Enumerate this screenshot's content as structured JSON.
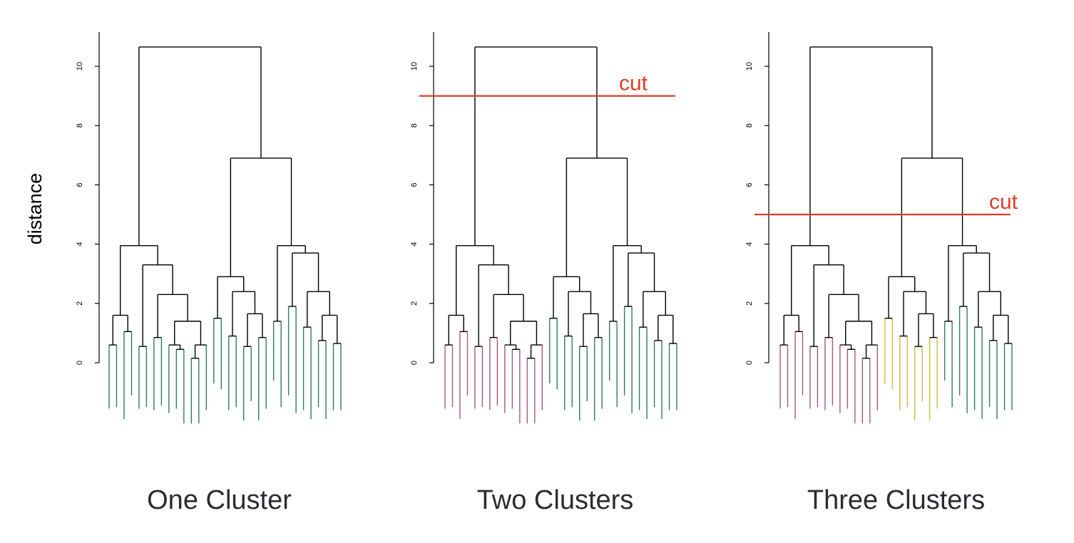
{
  "chart_data": {
    "type": "dendrogram",
    "ylabel": "distance",
    "ylim": [
      0,
      11
    ],
    "yticks": [
      0,
      2,
      4,
      6,
      8,
      10
    ],
    "colors": {
      "cluster_a": "#2e7d5b",
      "cluster_b": "#a8577e",
      "cluster_c": "#c2c23a",
      "link": "#000000",
      "cut": "#e23b26"
    },
    "root_height": 10.65,
    "main_split_height": 6.9,
    "panels": [
      {
        "title": "One Cluster",
        "cut": null,
        "cut_label": ""
      },
      {
        "title": "Two Clusters",
        "cut": 9.0,
        "cut_label": "cut"
      },
      {
        "title": "Three Clusters",
        "cut": 5.0,
        "cut_label": "cut"
      }
    ]
  }
}
